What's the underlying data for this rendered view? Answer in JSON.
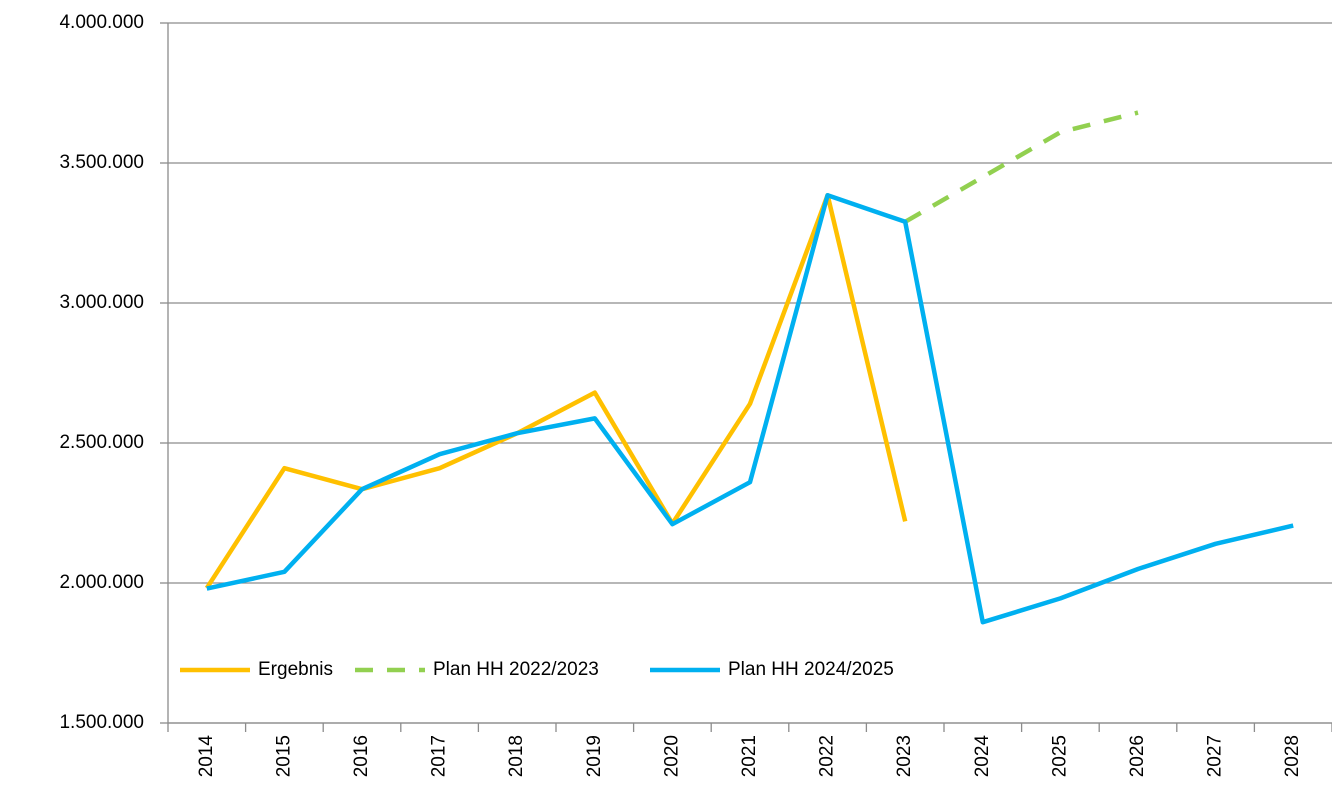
{
  "chart_data": {
    "type": "line",
    "categories": [
      "2014",
      "2015",
      "2016",
      "2017",
      "2018",
      "2019",
      "2020",
      "2021",
      "2022",
      "2023",
      "2024",
      "2025",
      "2026",
      "2027",
      "2028"
    ],
    "series": [
      {
        "name": "Ergebnis",
        "color": "#FFC000",
        "dash": false,
        "values": [
          1982000,
          2410000,
          2335000,
          2410000,
          2535000,
          2680000,
          2212000,
          2640000,
          3385000,
          2220000,
          null,
          null,
          null,
          null,
          null
        ]
      },
      {
        "name": "Plan HH 2022/2023",
        "color": "#92D050",
        "dash": true,
        "values": [
          null,
          null,
          null,
          null,
          null,
          null,
          null,
          null,
          null,
          3290000,
          3450000,
          3610000,
          3680000,
          null,
          null
        ]
      },
      {
        "name": "Plan HH 2024/2025",
        "color": "#00B0F0",
        "dash": false,
        "values": [
          1980000,
          2040000,
          2335000,
          2460000,
          2535000,
          2588000,
          2210000,
          2360000,
          3385000,
          3290000,
          1860000,
          1945000,
          2050000,
          2140000,
          2205000
        ]
      }
    ],
    "ylim": [
      1500000,
      4000000
    ],
    "yticks": [
      {
        "value": 1500000,
        "label": "1.500.000"
      },
      {
        "value": 2000000,
        "label": "2.000.000"
      },
      {
        "value": 2500000,
        "label": "2.500.000"
      },
      {
        "value": 3000000,
        "label": "3.000.000"
      },
      {
        "value": 3500000,
        "label": "3.500.000"
      },
      {
        "value": 4000000,
        "label": "4.000.000"
      }
    ],
    "grid": true,
    "legend": "bottom-left"
  }
}
